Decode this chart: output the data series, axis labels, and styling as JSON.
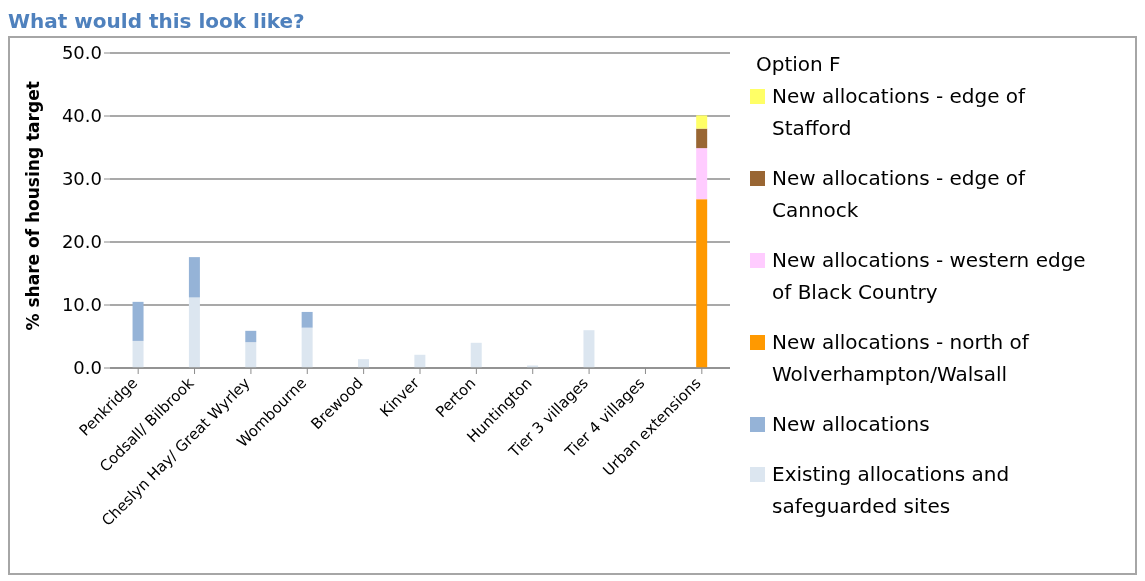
{
  "chart_data": {
    "type": "bar",
    "title": "What would this look like?",
    "ylabel": "% share of housing target",
    "legend_title": "Option F",
    "categories": [
      "Penkridge",
      "Codsall/ Bilbrook",
      "Cheslyn Hay/ Great Wyrley",
      "Wombourne",
      "Brewood",
      "Kinver",
      "Perton",
      "Huntington",
      "Tier 3 villages",
      "Tier 4 villages",
      "Urban extensions"
    ],
    "stacked": true,
    "grid": "y",
    "legend": "right",
    "ylim": [
      0,
      50
    ],
    "yticks": [
      {
        "value": 0,
        "label": "0.0"
      },
      {
        "value": 10,
        "label": "10.0"
      },
      {
        "value": 20,
        "label": "20.0"
      },
      {
        "value": 30,
        "label": "30.0"
      },
      {
        "value": 40,
        "label": "40.0"
      },
      {
        "value": 50,
        "label": "50.0"
      }
    ],
    "series": [
      {
        "name": "Existing allocations and safeguarded sites",
        "color": "#dce6f0",
        "values": [
          4.3,
          11.2,
          4.1,
          6.4,
          1.4,
          2.1,
          4.0,
          0.4,
          6.0,
          0,
          null
        ]
      },
      {
        "name": "New allocations",
        "color": "#95b3d7",
        "values": [
          6.2,
          6.4,
          1.8,
          2.5,
          null,
          null,
          null,
          null,
          null,
          null,
          null
        ]
      },
      {
        "name": "New allocations - north of Wolverhampton/Walsall",
        "color": "#ff9900",
        "values": [
          null,
          null,
          null,
          null,
          null,
          null,
          null,
          null,
          null,
          null,
          26.8
        ]
      },
      {
        "name": "New allocations - western edge of Black Country",
        "color": "#ffccff",
        "values": [
          null,
          null,
          null,
          null,
          null,
          null,
          null,
          null,
          null,
          null,
          8.1
        ]
      },
      {
        "name": "New allocations - edge of Cannock",
        "color": "#996633",
        "values": [
          null,
          null,
          null,
          null,
          null,
          null,
          null,
          null,
          null,
          null,
          3.1
        ]
      },
      {
        "name": "New allocations - edge of Stafford",
        "color": "#ffff66",
        "values": [
          null,
          null,
          null,
          null,
          null,
          null,
          null,
          null,
          null,
          null,
          2.1
        ]
      }
    ]
  }
}
